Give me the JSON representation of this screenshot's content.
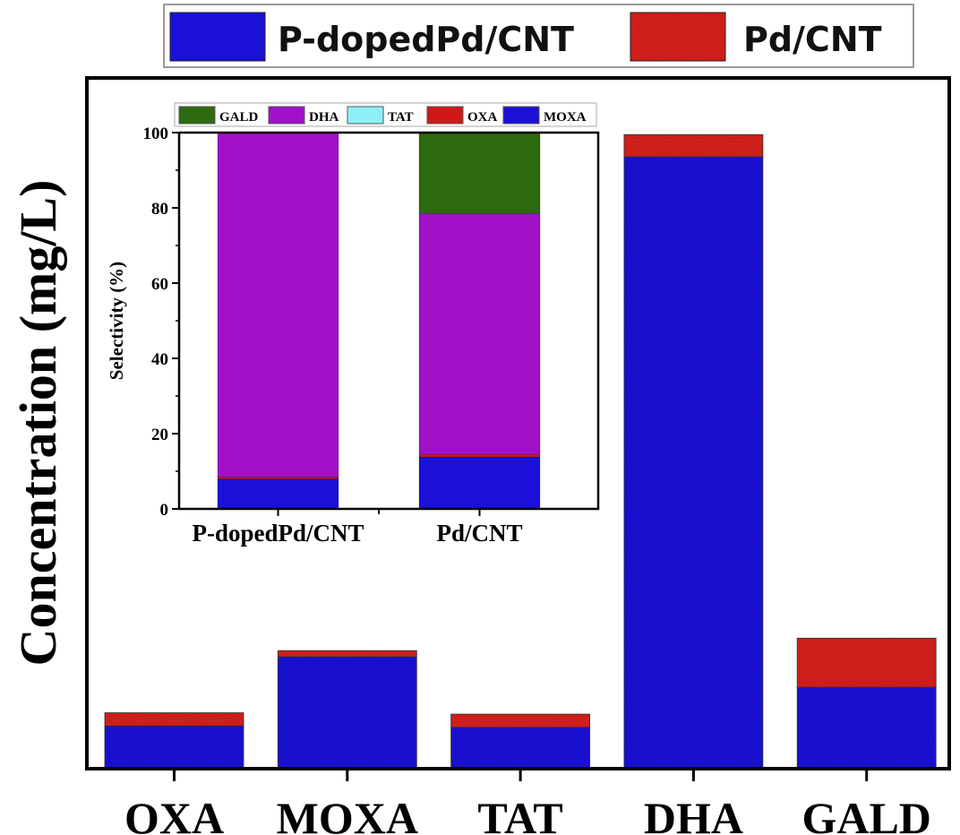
{
  "chart_data": [
    {
      "type": "bar",
      "stacked": true,
      "title": "",
      "xlabel": "",
      "ylabel": "Concentration (mg/L)",
      "ylim": [
        0,
        100
      ],
      "y_units_note": "relative (no y tick labels shown)",
      "categories": [
        "OXA",
        "MOXA",
        "TAT",
        "DHA",
        "GALD"
      ],
      "series": [
        {
          "name": "P-dopedPd/CNT",
          "color": "#1a10d8",
          "values": [
            6.2,
            16.2,
            6.0,
            88.6,
            11.8
          ]
        },
        {
          "name": "Pd/CNT",
          "color": "#d8201c",
          "values": [
            1.9,
            0.9,
            1.9,
            3.2,
            7.1
          ]
        }
      ],
      "legend": [
        "P-dopedPd/CNT",
        "Pd/CNT"
      ],
      "legend_position": "top",
      "grid": false
    },
    {
      "type": "bar",
      "stacked": true,
      "title": "",
      "xlabel": "",
      "ylabel": "Selectivity (%)",
      "ylim": [
        0,
        100
      ],
      "yticks": [
        0,
        20,
        40,
        60,
        80,
        100
      ],
      "categories": [
        "P-dopedPd/CNT",
        "Pd/CNT"
      ],
      "series": [
        {
          "name": "MOXA",
          "color": "#1a10d8",
          "values": [
            8.0,
            13.8
          ]
        },
        {
          "name": "OXA",
          "color": "#d01818",
          "values": [
            0.5,
            0.7
          ]
        },
        {
          "name": "TAT",
          "color": "#90f0f8",
          "values": [
            0,
            0
          ]
        },
        {
          "name": "DHA",
          "color": "#a010c8",
          "values": [
            91.5,
            64.0
          ]
        },
        {
          "name": "GALD",
          "color": "#2e6a10",
          "values": [
            0,
            21.5
          ]
        }
      ],
      "legend": [
        "GALD",
        "DHA",
        "TAT",
        "OXA",
        "MOXA"
      ],
      "legend_position": "top (inset)",
      "grid": false
    }
  ]
}
